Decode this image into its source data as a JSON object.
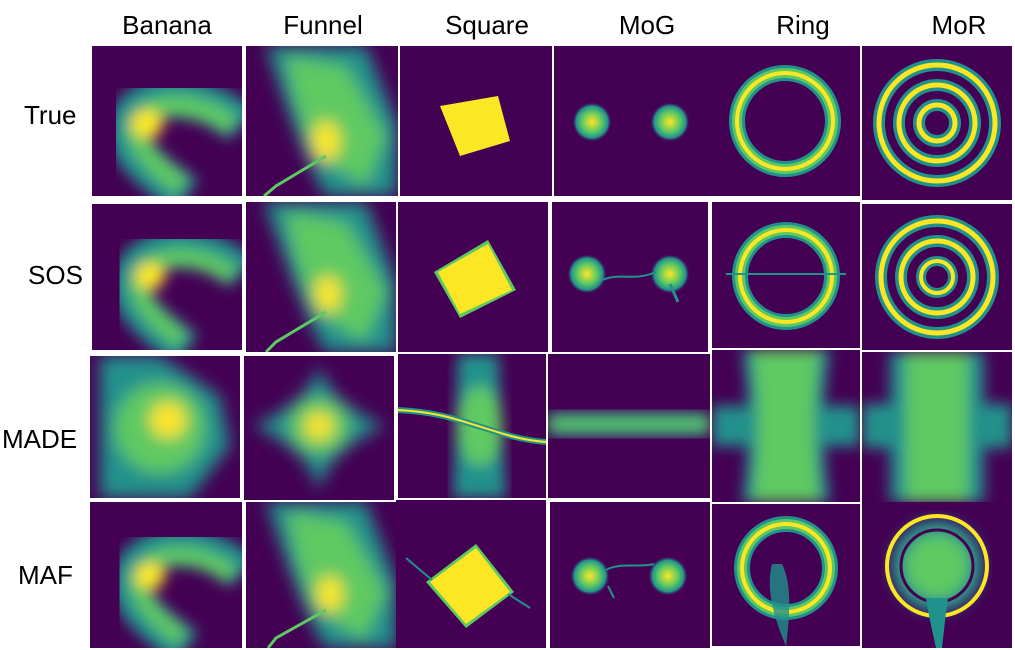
{
  "columns": {
    "banana": "Banana",
    "funnel": "Funnel",
    "square": "Square",
    "mog": "MoG",
    "ring": "Ring",
    "mor": "MoR"
  },
  "rows": {
    "true": "True",
    "sos": "SOS",
    "made": "MADE",
    "maf": "MAF"
  },
  "colors": {
    "background": "#440154",
    "low": "#31688e",
    "mid": "#21918c",
    "high": "#5ec962",
    "peak": "#fde725"
  }
}
